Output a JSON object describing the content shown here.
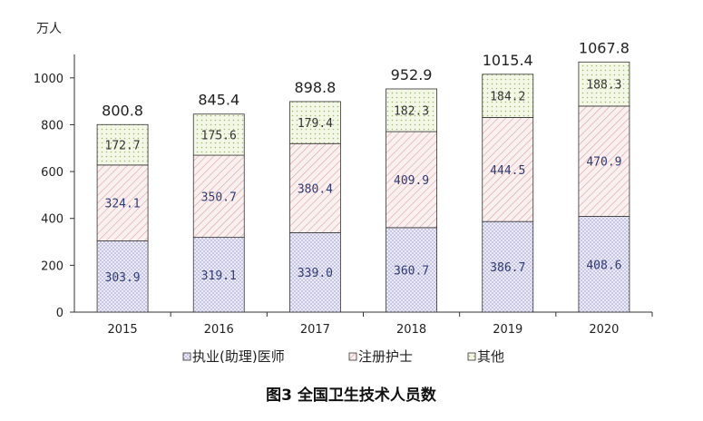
{
  "chart_data": {
    "type": "bar",
    "stacked": true,
    "title": "图3 全国卫生技术人员数",
    "ylabel": "万人",
    "ylim": [
      0,
      1100
    ],
    "yticks": [
      0,
      200,
      400,
      600,
      800,
      1000
    ],
    "categories": [
      "2015",
      "2016",
      "2017",
      "2018",
      "2019",
      "2020"
    ],
    "series": [
      {
        "name": "执业(助理)医师",
        "values": [
          303.9,
          319.1,
          339.0,
          360.7,
          386.7,
          408.6
        ],
        "labels": [
          "303.9",
          "319.1",
          "339.0",
          "360.7",
          "386.7",
          "408.6"
        ]
      },
      {
        "name": "注册护士",
        "values": [
          324.1,
          350.7,
          380.4,
          409.9,
          444.5,
          470.9
        ],
        "labels": [
          "324.1",
          "350.7",
          "380.4",
          "409.9",
          "444.5",
          "470.9"
        ]
      },
      {
        "name": "其他",
        "values": [
          172.7,
          175.6,
          179.4,
          182.3,
          184.2,
          188.3
        ],
        "labels": [
          "172.7",
          "175.6",
          "179.4",
          "182.3",
          "184.2",
          "188.3"
        ]
      }
    ],
    "totals": [
      "800.8",
      "845.4",
      "898.8",
      "952.9",
      "1015.4",
      "1067.8"
    ],
    "legend_position": "bottom",
    "grid": false
  },
  "colors": {
    "doctor_fill": "#ecebf7",
    "doctor_dot": "#8f8fc8",
    "nurse_fill": "#fbf0f0",
    "nurse_line": "#d9a0a0",
    "other_fill": "#f3f7e6",
    "other_dot": "#a7b56f",
    "axis": "#333333"
  }
}
